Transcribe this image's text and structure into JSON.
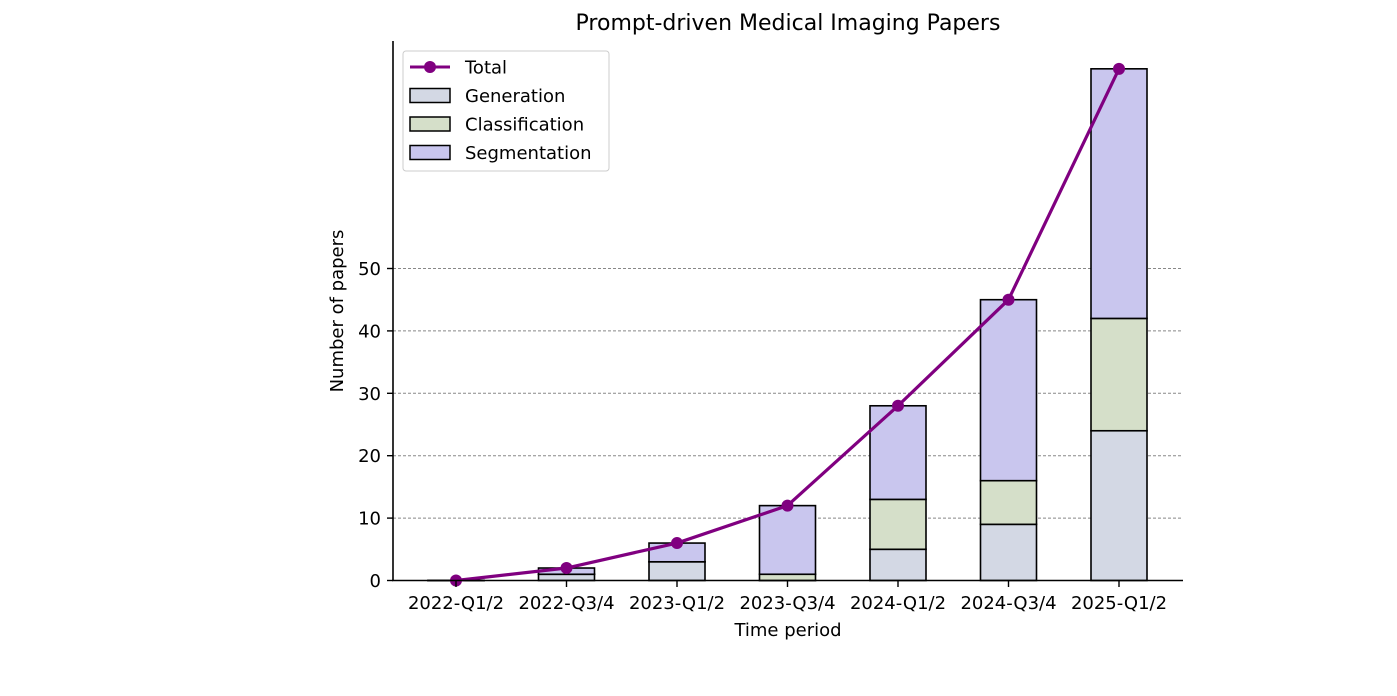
{
  "chart_data": {
    "type": "bar",
    "stacked": true,
    "title": "Prompt-driven Medical Imaging Papers",
    "xlabel": "Time period",
    "ylabel": "Number of papers",
    "categories": [
      "2022-Q1/2",
      "2022-Q3/4",
      "2023-Q1/2",
      "2023-Q3/4",
      "2024-Q1/2",
      "2024-Q3/4",
      "2025-Q1/2"
    ],
    "series": [
      {
        "name": "Generation",
        "values": [
          0,
          1,
          3,
          0,
          5,
          9,
          24
        ],
        "color": "#d3d8e4"
      },
      {
        "name": "Classification",
        "values": [
          0,
          0,
          0,
          1,
          8,
          7,
          18
        ],
        "color": "#d5dfc9"
      },
      {
        "name": "Segmentation",
        "values": [
          0,
          1,
          3,
          11,
          15,
          29,
          40
        ],
        "color": "#c9c6ee"
      }
    ],
    "line_series": {
      "name": "Total",
      "values": [
        0,
        2,
        6,
        12,
        28,
        45,
        82
      ],
      "color": "#800080"
    },
    "yticks": [
      0,
      10,
      20,
      30,
      40,
      50
    ],
    "ylim": [
      0,
      86
    ],
    "grid": {
      "axis": "y",
      "style": "dashed",
      "color": "#888888"
    },
    "legend": {
      "position": "upper left",
      "entries": [
        "Total",
        "Generation",
        "Classification",
        "Segmentation"
      ]
    }
  }
}
